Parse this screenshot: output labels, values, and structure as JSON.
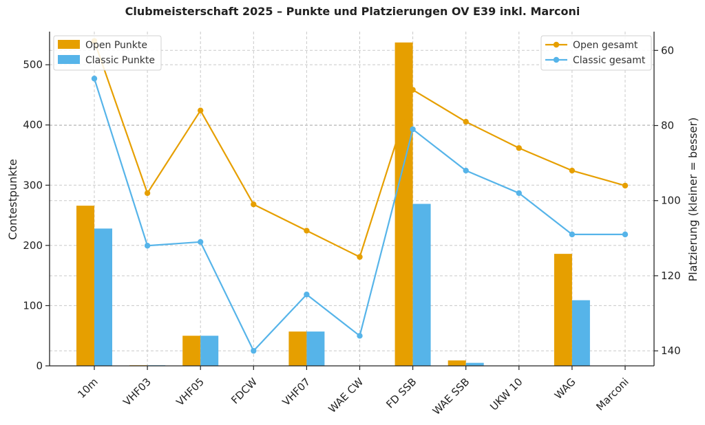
{
  "chart_data": {
    "type": "bar+line",
    "title": "Clubmeisterschaft 2025 – Punkte und Platzierungen OV E39 inkl. Marconi",
    "categories": [
      "10m",
      "VHF03",
      "VHF05",
      "FDCW",
      "VHF07",
      "WAE CW",
      "FD SSB",
      "WAE SSB",
      "UKW 10",
      "WAG",
      "Marconi"
    ],
    "ylabel": "Contestpunkte",
    "y2label": "Platzierung (kleiner = besser)",
    "ylim": [
      0,
      555
    ],
    "yticks": [
      0,
      100,
      200,
      300,
      400,
      500
    ],
    "y2lim": [
      55,
      144
    ],
    "y2ticks": [
      60,
      80,
      100,
      120,
      140
    ],
    "y2_inverted": true,
    "grid": true,
    "bar_series": [
      {
        "name": "Open Punkte",
        "color": "#E69F00",
        "values": [
          266,
          1,
          50,
          0,
          57,
          0,
          537,
          9,
          0,
          186,
          0
        ]
      },
      {
        "name": "Classic Punkte",
        "color": "#56B4E9",
        "values": [
          228,
          1,
          50,
          0,
          57,
          0,
          269,
          5,
          0,
          109,
          0
        ]
      }
    ],
    "line_series": [
      {
        "name": "Open gesamt",
        "color": "#E69F00",
        "axis": "right",
        "values": [
          57.5,
          98,
          76,
          101,
          108,
          115,
          70.5,
          79,
          86,
          92,
          96
        ]
      },
      {
        "name": "Classic gesamt",
        "color": "#56B4E9",
        "axis": "right",
        "values": [
          67.5,
          112,
          111,
          140,
          125,
          136,
          81,
          92,
          98,
          109,
          109
        ]
      }
    ],
    "legend_left": "top-left",
    "legend_right": "top-right"
  }
}
